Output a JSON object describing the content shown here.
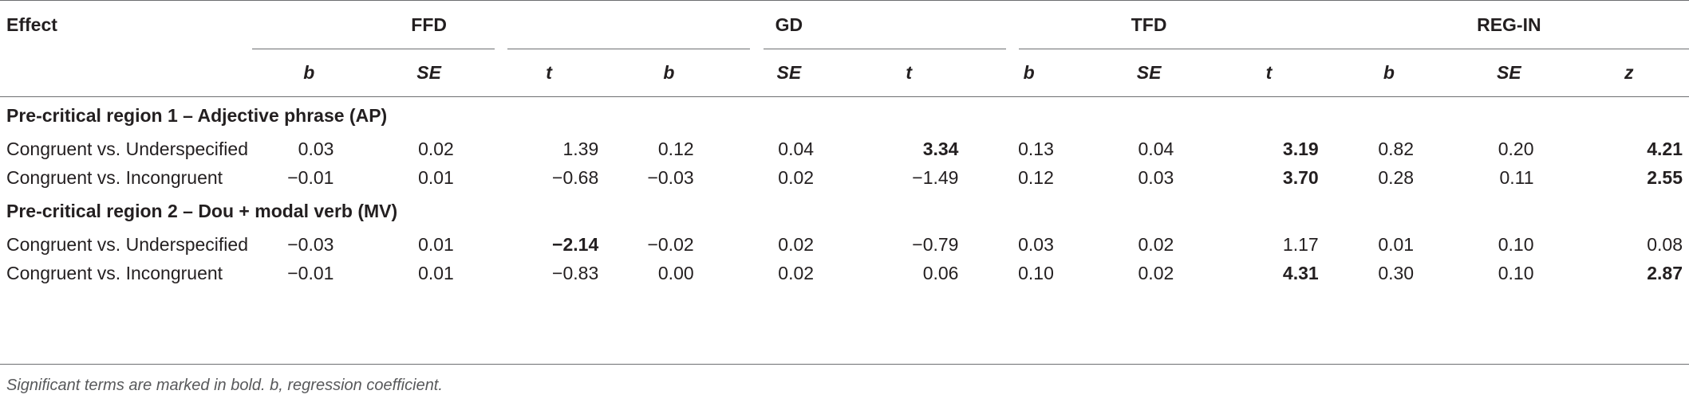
{
  "header": {
    "effect": "Effect",
    "groups": [
      "FFD",
      "GD",
      "TFD",
      "REG-IN"
    ],
    "subheaders": [
      "b",
      "SE",
      "t",
      "b",
      "SE",
      "t",
      "b",
      "SE",
      "t",
      "b",
      "SE",
      "z"
    ]
  },
  "sections": [
    {
      "title": "Pre-critical region 1 – Adjective phrase (AP)",
      "rows": [
        {
          "label": "Congruent vs. Underspecified",
          "cells": [
            {
              "v": "0.03",
              "bold": false
            },
            {
              "v": "0.02",
              "bold": false
            },
            {
              "v": "1.39",
              "bold": false
            },
            {
              "v": "0.12",
              "bold": false
            },
            {
              "v": "0.04",
              "bold": false
            },
            {
              "v": "3.34",
              "bold": true
            },
            {
              "v": "0.13",
              "bold": false
            },
            {
              "v": "0.04",
              "bold": false
            },
            {
              "v": "3.19",
              "bold": true
            },
            {
              "v": "0.82",
              "bold": false
            },
            {
              "v": "0.20",
              "bold": false
            },
            {
              "v": "4.21",
              "bold": true
            }
          ]
        },
        {
          "label": "Congruent vs. Incongruent",
          "cells": [
            {
              "v": "−0.01",
              "bold": false
            },
            {
              "v": "0.01",
              "bold": false
            },
            {
              "v": "−0.68",
              "bold": false
            },
            {
              "v": "−0.03",
              "bold": false
            },
            {
              "v": "0.02",
              "bold": false
            },
            {
              "v": "−1.49",
              "bold": false
            },
            {
              "v": "0.12",
              "bold": false
            },
            {
              "v": "0.03",
              "bold": false
            },
            {
              "v": "3.70",
              "bold": true
            },
            {
              "v": "0.28",
              "bold": false
            },
            {
              "v": "0.11",
              "bold": false
            },
            {
              "v": "2.55",
              "bold": true
            }
          ]
        }
      ]
    },
    {
      "title": "Pre-critical region 2 – Dou + modal verb (MV)",
      "rows": [
        {
          "label": "Congruent vs. Underspecified",
          "cells": [
            {
              "v": "−0.03",
              "bold": false
            },
            {
              "v": "0.01",
              "bold": false
            },
            {
              "v": "−2.14",
              "bold": true
            },
            {
              "v": "−0.02",
              "bold": false
            },
            {
              "v": "0.02",
              "bold": false
            },
            {
              "v": "−0.79",
              "bold": false
            },
            {
              "v": "0.03",
              "bold": false
            },
            {
              "v": "0.02",
              "bold": false
            },
            {
              "v": "1.17",
              "bold": false
            },
            {
              "v": "0.01",
              "bold": false
            },
            {
              "v": "0.10",
              "bold": false
            },
            {
              "v": "0.08",
              "bold": false
            }
          ]
        },
        {
          "label": "Congruent vs. Incongruent",
          "cells": [
            {
              "v": "−0.01",
              "bold": false
            },
            {
              "v": "0.01",
              "bold": false
            },
            {
              "v": "−0.83",
              "bold": false
            },
            {
              "v": "0.00",
              "bold": false
            },
            {
              "v": "0.02",
              "bold": false
            },
            {
              "v": "0.06",
              "bold": false
            },
            {
              "v": "0.10",
              "bold": false
            },
            {
              "v": "0.02",
              "bold": false
            },
            {
              "v": "4.31",
              "bold": true
            },
            {
              "v": "0.30",
              "bold": false
            },
            {
              "v": "0.10",
              "bold": false
            },
            {
              "v": "2.87",
              "bold": true
            }
          ]
        }
      ]
    }
  ],
  "footnote": "Significant terms are marked in bold. b, regression coefficient."
}
